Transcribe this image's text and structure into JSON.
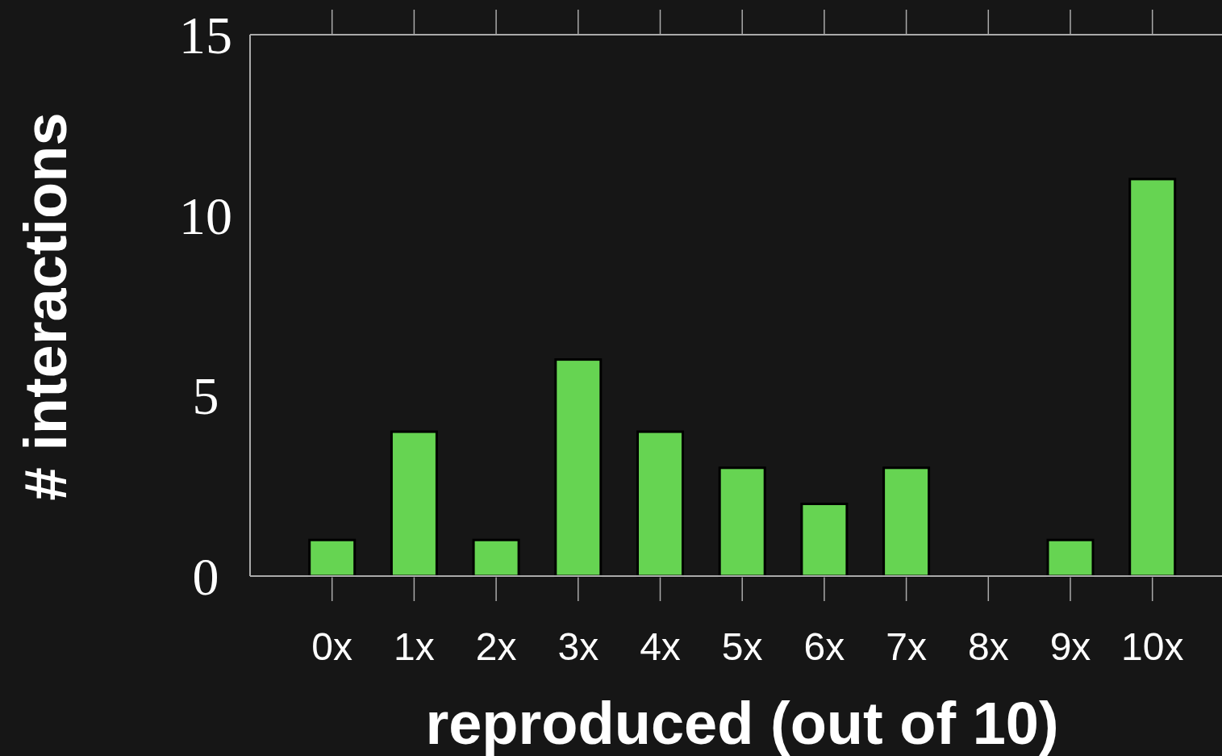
{
  "chart_data": {
    "type": "bar",
    "xlabel": "reproduced (out of 10)",
    "ylabel": "# interactions",
    "categories": [
      "0x",
      "1x",
      "2x",
      "3x",
      "4x",
      "5x",
      "6x",
      "7x",
      "8x",
      "9x",
      "10x"
    ],
    "values": [
      1,
      4,
      1,
      6,
      4,
      3,
      2,
      3,
      0,
      1,
      11
    ],
    "color": "#66d452",
    "ylim": [
      0,
      15
    ],
    "yticks": [
      0,
      5,
      10,
      15
    ]
  }
}
